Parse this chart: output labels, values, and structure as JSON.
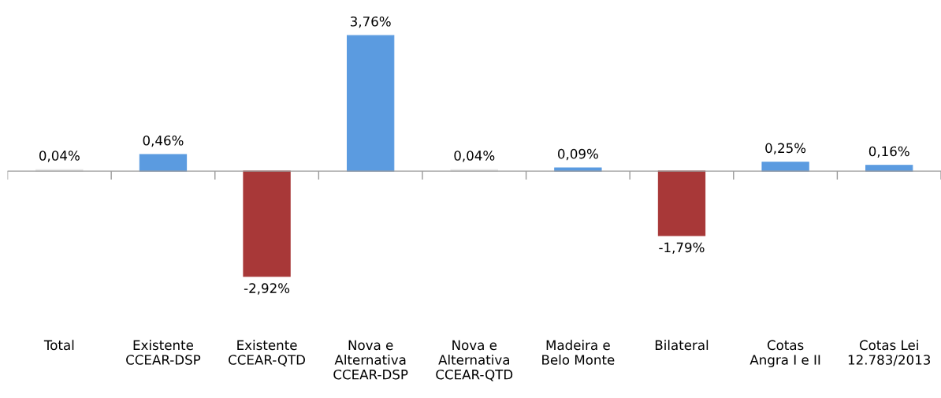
{
  "chart_data": {
    "type": "bar",
    "categories": [
      "Total",
      "Existente\nCCEAR-DSP",
      "Existente\nCCEAR-QTD",
      "Nova e\nAlternativa\nCCEAR-DSP",
      "Nova e\nAlternativa\nCCEAR-QTD",
      "Madeira e\nBelo Monte",
      "Bilateral",
      "Cotas\nAngra I e II",
      "Cotas Lei\n12.783/2013"
    ],
    "values": [
      0.04,
      0.46,
      -2.92,
      3.76,
      0.04,
      0.09,
      -1.79,
      0.25,
      0.16
    ],
    "colors": [
      "#e6e6e6",
      "#5b9be0",
      "#a83838",
      "#5b9be0",
      "#e6e6e6",
      "#5b9be0",
      "#a83838",
      "#5b9be0",
      "#5b9be0"
    ],
    "value_labels": [
      "0,04%",
      "0,46%",
      "-2,92%",
      "3,76%",
      "0,04%",
      "0,09%",
      "-1,79%",
      "0,25%",
      "0,16%"
    ],
    "grid": false,
    "legend": false
  }
}
